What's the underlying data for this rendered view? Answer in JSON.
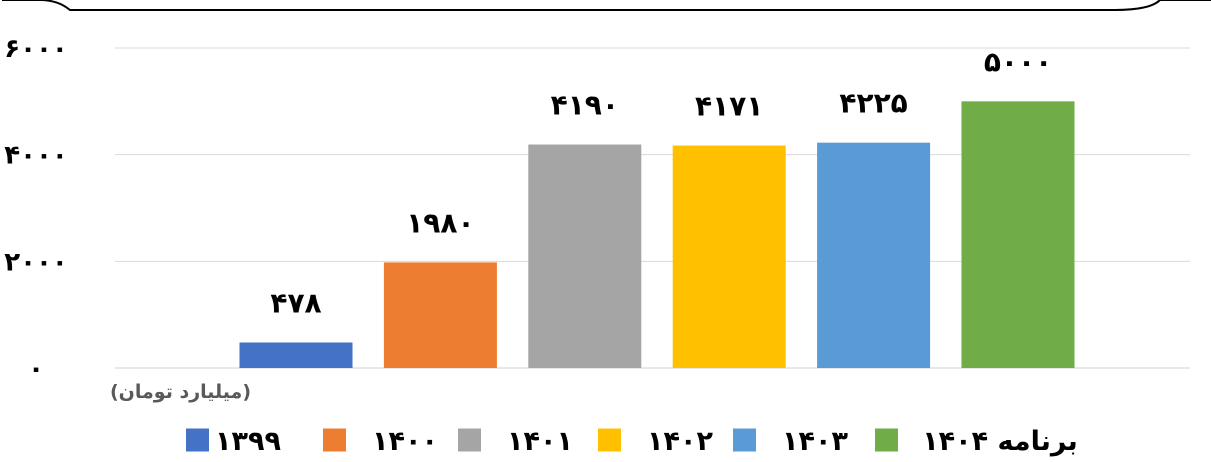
{
  "chart_data": {
    "type": "bar",
    "categories": [
      "۱۳۹۹",
      "۱۴۰۰",
      "۱۴۰۱",
      "۱۴۰۲",
      "۱۴۰۳",
      "برنامه ۱۴۰۴"
    ],
    "values": [
      478,
      1980,
      4190,
      4171,
      4225,
      5000
    ],
    "value_labels": [
      "۴۷۸",
      "۱۹۸۰",
      "۴۱۹۰",
      "۴۱۷۱",
      "۴۲۲۵",
      "۵۰۰۰"
    ],
    "colors": [
      "#4472C4",
      "#ED7D31",
      "#A5A5A5",
      "#FFC000",
      "#5B9BD5",
      "#70AD47"
    ],
    "ylim": [
      0,
      6000
    ],
    "yticks": [
      0,
      2000,
      4000,
      6000
    ],
    "ytick_labels": [
      "۰",
      "۲۰۰۰",
      "۴۰۰۰",
      "۶۰۰۰"
    ],
    "unit_label": "(میلیارد تومان)",
    "grid": true,
    "legend_position": "bottom",
    "title": "",
    "xlabel": "",
    "ylabel": ""
  }
}
